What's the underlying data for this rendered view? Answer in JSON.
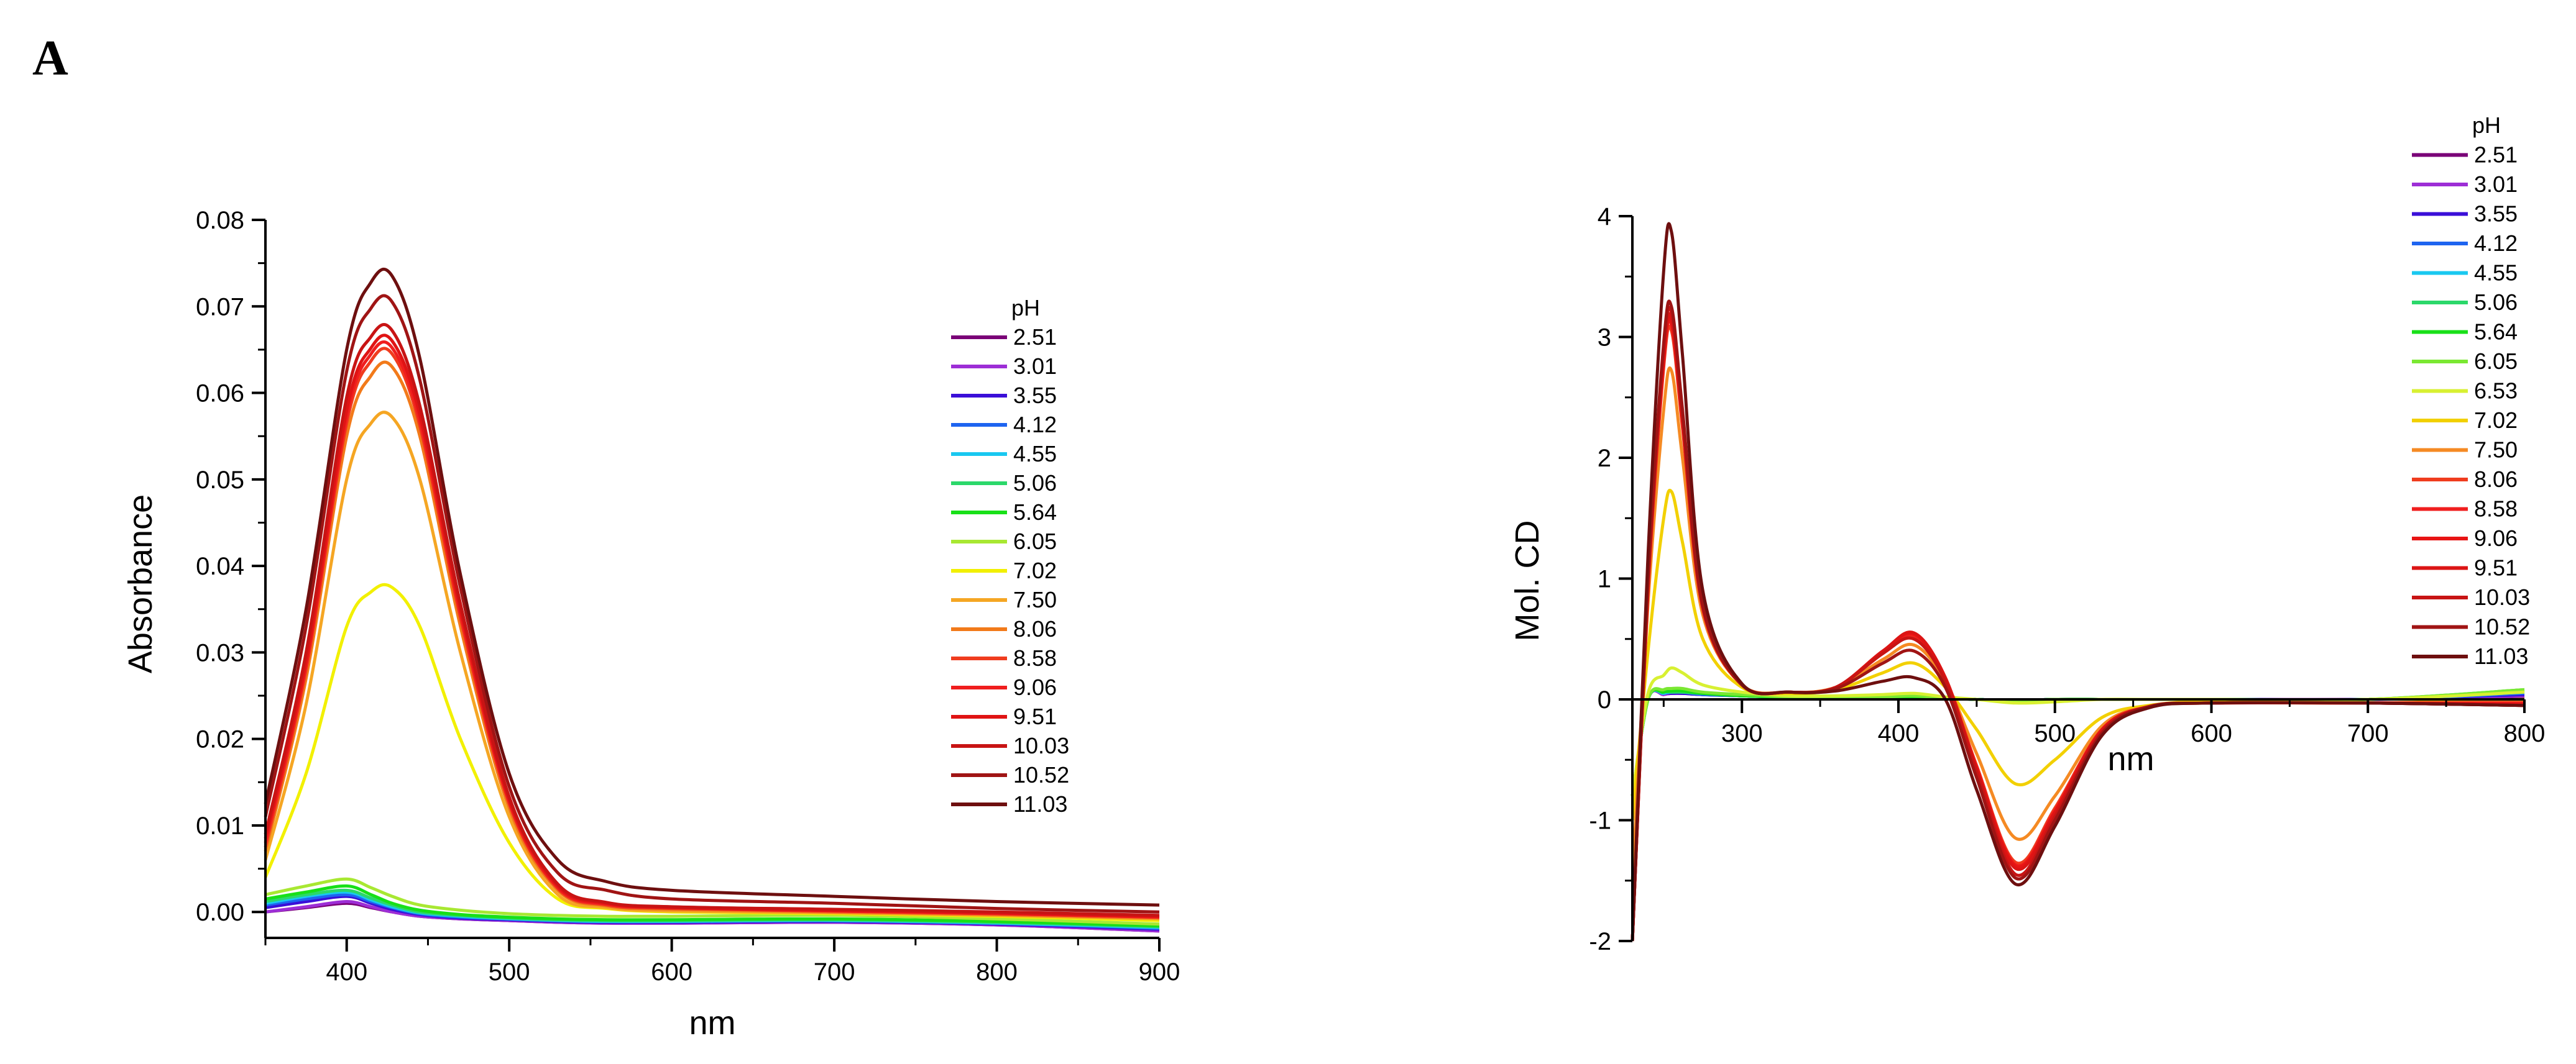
{
  "figure": {
    "panel_label": "A"
  },
  "chart_data": [
    {
      "type": "line",
      "xlabel": "nm",
      "ylabel": "Absorbance",
      "xlim": [
        350,
        900
      ],
      "ylim": [
        -0.003,
        0.08
      ],
      "x_ticks": [
        400,
        500,
        600,
        700,
        800,
        900
      ],
      "y_ticks": [
        0.0,
        0.01,
        0.02,
        0.03,
        0.04,
        0.05,
        0.06,
        0.07,
        0.08
      ],
      "y_tick_labels": [
        "0.00",
        "0.01",
        "0.02",
        "0.03",
        "0.04",
        "0.05",
        "0.06",
        "0.07",
        "0.08"
      ],
      "legend_title": "pH",
      "legend_position": "right",
      "x_sample": [
        350,
        375,
        400,
        415,
        428,
        445,
        470,
        500,
        530,
        560,
        600,
        700,
        800,
        900
      ],
      "series": [
        {
          "name": "2.51",
          "color": "#7a0177",
          "values": [
            0.0,
            0.0005,
            0.001,
            0.0005,
            0.0,
            -0.0005,
            -0.0008,
            -0.001,
            -0.0012,
            -0.0013,
            -0.0013,
            -0.0012,
            -0.0015,
            -0.0022
          ]
        },
        {
          "name": "3.01",
          "color": "#9d2ed6",
          "values": [
            0.0,
            0.0006,
            0.0012,
            0.0006,
            0.0,
            -0.0005,
            -0.0008,
            -0.001,
            -0.0012,
            -0.0013,
            -0.0013,
            -0.0012,
            -0.0015,
            -0.0022
          ]
        },
        {
          "name": "3.55",
          "color": "#3a0fd8",
          "values": [
            0.0005,
            0.0012,
            0.0018,
            0.001,
            0.0003,
            -0.0003,
            -0.0007,
            -0.0009,
            -0.0011,
            -0.0012,
            -0.0012,
            -0.0011,
            -0.0014,
            -0.002
          ]
        },
        {
          "name": "4.12",
          "color": "#1e64f0",
          "values": [
            0.0008,
            0.0015,
            0.002,
            0.0012,
            0.0005,
            -0.0002,
            -0.0006,
            -0.0008,
            -0.001,
            -0.0011,
            -0.0011,
            -0.001,
            -0.0013,
            -0.0019
          ]
        },
        {
          "name": "4.55",
          "color": "#19c8f0",
          "values": [
            0.001,
            0.0018,
            0.0023,
            0.0014,
            0.0006,
            -0.0001,
            -0.0005,
            -0.0008,
            -0.001,
            -0.0011,
            -0.0011,
            -0.001,
            -0.0013,
            -0.0018
          ]
        },
        {
          "name": "5.06",
          "color": "#2bd86a",
          "values": [
            0.0012,
            0.002,
            0.0025,
            0.0016,
            0.0008,
            0.0,
            -0.0004,
            -0.0007,
            -0.0009,
            -0.001,
            -0.001,
            -0.0009,
            -0.0012,
            -0.0017
          ]
        },
        {
          "name": "5.64",
          "color": "#18e018",
          "values": [
            0.0015,
            0.0023,
            0.003,
            0.002,
            0.001,
            0.0002,
            -0.0003,
            -0.0006,
            -0.0008,
            -0.0009,
            -0.0009,
            -0.0008,
            -0.0011,
            -0.0016
          ]
        },
        {
          "name": "6.05",
          "color": "#a8e832",
          "values": [
            0.002,
            0.003,
            0.0038,
            0.0028,
            0.0018,
            0.0008,
            0.0002,
            -0.0002,
            -0.0004,
            -0.0005,
            -0.0005,
            -0.0004,
            -0.0008,
            -0.0014
          ]
        },
        {
          "name": "7.02",
          "color": "#f2f000",
          "values": [
            0.004,
            0.016,
            0.033,
            0.037,
            0.0375,
            0.033,
            0.02,
            0.008,
            0.0015,
            0.0004,
            0.0,
            -0.0002,
            -0.0005,
            -0.001
          ]
        },
        {
          "name": "7.50",
          "color": "#f5a623",
          "values": [
            0.006,
            0.024,
            0.05,
            0.0565,
            0.0572,
            0.05,
            0.03,
            0.011,
            0.002,
            0.0005,
            0.0001,
            -0.0001,
            -0.0004,
            -0.0008
          ]
        },
        {
          "name": "8.06",
          "color": "#f27a1a",
          "values": [
            0.007,
            0.027,
            0.055,
            0.062,
            0.063,
            0.055,
            0.033,
            0.012,
            0.0025,
            0.0007,
            0.0003,
            0.0,
            -0.0003,
            -0.0007
          ]
        },
        {
          "name": "8.58",
          "color": "#f03c1e",
          "values": [
            0.0075,
            0.028,
            0.0565,
            0.0637,
            0.0645,
            0.0562,
            0.034,
            0.0125,
            0.0027,
            0.0008,
            0.0004,
            0.0001,
            -0.0002,
            -0.0006
          ]
        },
        {
          "name": "9.06",
          "color": "#f01e1e",
          "values": [
            0.008,
            0.0285,
            0.0572,
            0.0645,
            0.0652,
            0.0568,
            0.0345,
            0.0127,
            0.0028,
            0.0009,
            0.0005,
            0.0001,
            -0.0002,
            -0.0006
          ]
        },
        {
          "name": "9.51",
          "color": "#e01414",
          "values": [
            0.0085,
            0.029,
            0.058,
            0.0652,
            0.066,
            0.0575,
            0.035,
            0.013,
            0.003,
            0.001,
            0.0005,
            0.0002,
            -0.0001,
            -0.0005
          ]
        },
        {
          "name": "10.03",
          "color": "#c81414",
          "values": [
            0.009,
            0.03,
            0.0595,
            0.0665,
            0.0672,
            0.0585,
            0.0356,
            0.0133,
            0.0032,
            0.0011,
            0.0006,
            0.0003,
            0.0,
            -0.0004
          ]
        },
        {
          "name": "10.52",
          "color": "#a01414",
          "values": [
            0.011,
            0.033,
            0.0625,
            0.0698,
            0.0705,
            0.0615,
            0.0375,
            0.0145,
            0.0045,
            0.0025,
            0.0015,
            0.001,
            0.0004,
            0.0
          ]
        },
        {
          "name": "11.03",
          "color": "#6e0f0f",
          "values": [
            0.0125,
            0.035,
            0.065,
            0.0728,
            0.0735,
            0.064,
            0.039,
            0.016,
            0.006,
            0.0035,
            0.0025,
            0.0018,
            0.0012,
            0.0008
          ]
        }
      ]
    },
    {
      "type": "line",
      "xlabel": "nm",
      "ylabel": "Mol. CD",
      "xlim": [
        230,
        800
      ],
      "ylim": [
        -2,
        4
      ],
      "x_ticks": [
        300,
        400,
        500,
        600,
        700,
        800
      ],
      "y_ticks": [
        -2,
        -1,
        0,
        1,
        2,
        3,
        4
      ],
      "legend_title": "pH",
      "legend_position": "top-right",
      "x_sample": [
        230,
        240,
        250,
        255,
        262,
        275,
        300,
        330,
        360,
        390,
        410,
        430,
        450,
        475,
        500,
        530,
        560,
        600,
        700,
        800
      ],
      "series": [
        {
          "name": "2.51",
          "color": "#7a0177",
          "values": [
            -0.8,
            0.0,
            0.04,
            0.05,
            0.05,
            0.04,
            0.03,
            0.02,
            0.02,
            0.02,
            0.02,
            0.01,
            0.0,
            -0.01,
            0.0,
            0.0,
            0.0,
            0.0,
            0.0,
            0.02
          ]
        },
        {
          "name": "3.01",
          "color": "#9d2ed6",
          "values": [
            -0.8,
            0.0,
            0.04,
            0.05,
            0.05,
            0.04,
            0.03,
            0.02,
            0.02,
            0.02,
            0.02,
            0.01,
            0.0,
            -0.01,
            0.0,
            0.0,
            0.0,
            0.0,
            0.0,
            0.03
          ]
        },
        {
          "name": "3.55",
          "color": "#3a0fd8",
          "values": [
            -0.8,
            0.0,
            0.05,
            0.05,
            0.05,
            0.04,
            0.03,
            0.02,
            0.02,
            0.02,
            0.02,
            0.01,
            0.0,
            -0.01,
            0.0,
            0.0,
            0.0,
            0.0,
            0.0,
            0.04
          ]
        },
        {
          "name": "4.12",
          "color": "#1e64f0",
          "values": [
            -0.8,
            0.0,
            0.05,
            0.06,
            0.06,
            0.04,
            0.03,
            0.02,
            0.02,
            0.02,
            0.02,
            0.01,
            0.0,
            -0.01,
            0.0,
            0.0,
            0.0,
            0.0,
            0.0,
            0.05
          ]
        },
        {
          "name": "4.55",
          "color": "#19c8f0",
          "values": [
            -0.8,
            0.0,
            0.05,
            0.06,
            0.06,
            0.05,
            0.03,
            0.02,
            0.02,
            0.02,
            0.02,
            0.01,
            0.0,
            -0.01,
            0.0,
            0.0,
            0.0,
            0.0,
            0.0,
            0.06
          ]
        },
        {
          "name": "5.06",
          "color": "#2bd86a",
          "values": [
            -0.8,
            0.0,
            0.06,
            0.06,
            0.06,
            0.05,
            0.03,
            0.02,
            0.02,
            0.02,
            0.02,
            0.01,
            0.0,
            -0.01,
            0.0,
            0.0,
            0.0,
            0.0,
            0.0,
            0.07
          ]
        },
        {
          "name": "5.64",
          "color": "#18e018",
          "values": [
            -0.8,
            0.0,
            0.06,
            0.07,
            0.07,
            0.05,
            0.03,
            0.02,
            0.02,
            0.02,
            0.02,
            0.01,
            0.0,
            -0.01,
            0.0,
            0.0,
            0.0,
            0.0,
            0.0,
            0.08
          ]
        },
        {
          "name": "6.05",
          "color": "#7ae832",
          "values": [
            -0.8,
            0.0,
            0.08,
            0.09,
            0.09,
            0.06,
            0.04,
            0.02,
            0.02,
            0.02,
            0.03,
            0.01,
            0.0,
            -0.01,
            0.0,
            0.0,
            0.0,
            0.0,
            0.0,
            0.08
          ]
        },
        {
          "name": "6.53",
          "color": "#d8f032",
          "values": [
            -0.8,
            0.05,
            0.2,
            0.26,
            0.22,
            0.12,
            0.06,
            0.03,
            0.03,
            0.04,
            0.05,
            0.02,
            0.0,
            -0.03,
            -0.02,
            0.0,
            0.0,
            0.0,
            0.0,
            0.06
          ]
        },
        {
          "name": "7.02",
          "color": "#f2d000",
          "values": [
            -1.0,
            0.4,
            1.5,
            1.72,
            1.3,
            0.5,
            0.1,
            0.05,
            0.08,
            0.22,
            0.3,
            0.1,
            -0.25,
            -0.7,
            -0.5,
            -0.15,
            -0.05,
            -0.02,
            -0.03,
            0.0
          ]
        },
        {
          "name": "7.50",
          "color": "#f58a23",
          "values": [
            -1.5,
            0.8,
            2.4,
            2.72,
            2.0,
            0.7,
            0.12,
            0.06,
            0.1,
            0.33,
            0.45,
            0.15,
            -0.45,
            -1.15,
            -0.8,
            -0.22,
            -0.06,
            -0.03,
            -0.03,
            -0.02
          ]
        },
        {
          "name": "8.06",
          "color": "#f03c1e",
          "values": [
            -2.0,
            0.9,
            2.75,
            3.05,
            2.25,
            0.75,
            0.12,
            0.06,
            0.1,
            0.38,
            0.52,
            0.17,
            -0.55,
            -1.35,
            -0.9,
            -0.25,
            -0.06,
            -0.03,
            -0.03,
            -0.03
          ]
        },
        {
          "name": "8.58",
          "color": "#f01e1e",
          "values": [
            -2.0,
            0.92,
            2.8,
            3.1,
            2.3,
            0.75,
            0.12,
            0.06,
            0.1,
            0.39,
            0.53,
            0.17,
            -0.56,
            -1.37,
            -0.92,
            -0.25,
            -0.06,
            -0.03,
            -0.03,
            -0.03
          ]
        },
        {
          "name": "9.06",
          "color": "#e81414",
          "values": [
            -2.0,
            0.93,
            2.82,
            3.12,
            2.3,
            0.76,
            0.12,
            0.06,
            0.1,
            0.4,
            0.54,
            0.18,
            -0.57,
            -1.38,
            -0.93,
            -0.25,
            -0.06,
            -0.03,
            -0.03,
            -0.04
          ]
        },
        {
          "name": "9.51",
          "color": "#dc1414",
          "values": [
            -2.0,
            0.95,
            2.85,
            3.15,
            2.32,
            0.76,
            0.12,
            0.06,
            0.1,
            0.4,
            0.55,
            0.18,
            -0.58,
            -1.4,
            -0.94,
            -0.26,
            -0.06,
            -0.03,
            -0.03,
            -0.05
          ]
        },
        {
          "name": "10.03",
          "color": "#c81414",
          "values": [
            -2.0,
            0.97,
            2.9,
            3.2,
            2.35,
            0.77,
            0.12,
            0.06,
            0.1,
            0.38,
            0.5,
            0.15,
            -0.6,
            -1.45,
            -0.97,
            -0.27,
            -0.06,
            -0.03,
            -0.03,
            -0.05
          ]
        },
        {
          "name": "10.52",
          "color": "#a01414",
          "values": [
            -2.0,
            1.0,
            2.95,
            3.25,
            2.4,
            0.78,
            0.12,
            0.06,
            0.09,
            0.3,
            0.4,
            0.1,
            -0.65,
            -1.48,
            -1.0,
            -0.28,
            -0.06,
            -0.03,
            -0.03,
            -0.05
          ]
        },
        {
          "name": "11.03",
          "color": "#6e0f0f",
          "values": [
            -2.0,
            1.2,
            3.55,
            3.87,
            2.85,
            0.9,
            0.13,
            0.06,
            0.07,
            0.15,
            0.18,
            0.0,
            -0.75,
            -1.53,
            -1.05,
            -0.3,
            -0.07,
            -0.03,
            -0.03,
            -0.05
          ]
        }
      ]
    }
  ]
}
